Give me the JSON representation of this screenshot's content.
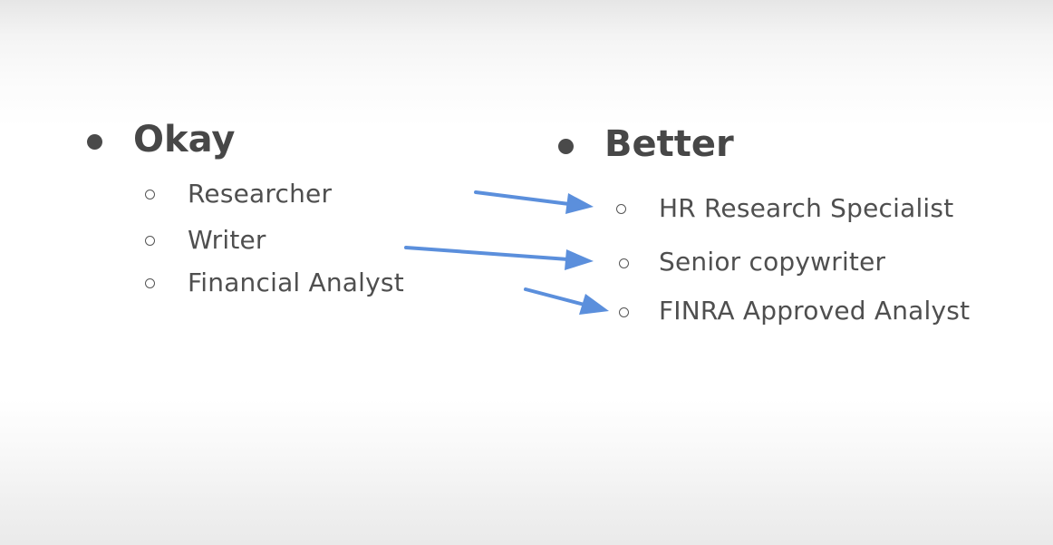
{
  "left_column": {
    "heading": "Okay",
    "items": [
      "Researcher",
      "Writer",
      "Financial Analyst"
    ]
  },
  "right_column": {
    "heading": "Better",
    "items": [
      "HR Research Specialist",
      "Senior copywriter",
      "FINRA Approved Analyst"
    ]
  },
  "colors": {
    "arrow": "#5b8fdc",
    "text": "#4f4f4f",
    "heading": "#474747"
  }
}
